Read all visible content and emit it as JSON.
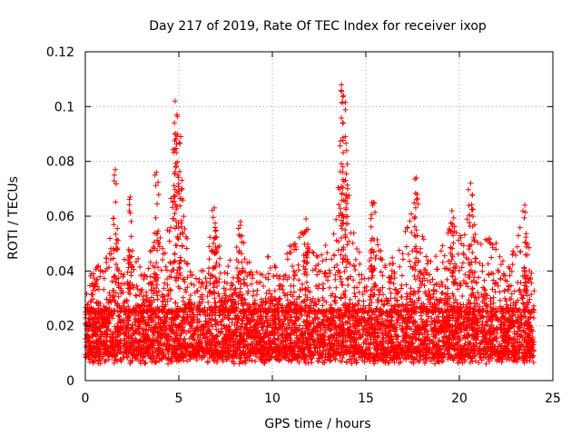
{
  "chart_data": {
    "type": "scatter",
    "title": "Day 217 of 2019, Rate Of TEC Index for receiver ixop",
    "xlabel": "GPS time / hours",
    "ylabel": "ROTI / TECUs",
    "xlim": [
      0,
      25
    ],
    "ylim": [
      0,
      0.12
    ],
    "x_ticks": [
      0,
      5,
      10,
      15,
      20,
      25
    ],
    "y_ticks": [
      0,
      0.02,
      0.04,
      0.06,
      0.08,
      0.1,
      0.12
    ],
    "x_tick_labels": [
      "0",
      "5",
      "10",
      "15",
      "20",
      "25"
    ],
    "y_tick_labels": [
      "0",
      "0.02",
      "0.04",
      "0.06",
      "0.08",
      "0.1",
      "0.12"
    ],
    "grid": true,
    "marker": "+",
    "color": "#ff0000",
    "data_range_hours": [
      0,
      24
    ],
    "typical_band": [
      0.008,
      0.025
    ],
    "peaks": [
      {
        "x": 1.6,
        "y": 0.077
      },
      {
        "x": 2.4,
        "y": 0.067
      },
      {
        "x": 3.8,
        "y": 0.076
      },
      {
        "x": 4.8,
        "y": 0.102
      },
      {
        "x": 4.9,
        "y": 0.097
      },
      {
        "x": 5.1,
        "y": 0.089
      },
      {
        "x": 6.9,
        "y": 0.063
      },
      {
        "x": 8.3,
        "y": 0.058
      },
      {
        "x": 11.8,
        "y": 0.059
      },
      {
        "x": 13.7,
        "y": 0.108
      },
      {
        "x": 13.8,
        "y": 0.104
      },
      {
        "x": 13.9,
        "y": 0.089
      },
      {
        "x": 15.4,
        "y": 0.065
      },
      {
        "x": 17.7,
        "y": 0.074
      },
      {
        "x": 19.6,
        "y": 0.062
      },
      {
        "x": 20.6,
        "y": 0.072
      },
      {
        "x": 23.5,
        "y": 0.064
      }
    ],
    "activity_envelope": [
      [
        0,
        0.03
      ],
      [
        0.5,
        0.045
      ],
      [
        1.0,
        0.04
      ],
      [
        1.6,
        0.065
      ],
      [
        2.0,
        0.042
      ],
      [
        2.4,
        0.055
      ],
      [
        3.0,
        0.04
      ],
      [
        3.5,
        0.048
      ],
      [
        3.8,
        0.07
      ],
      [
        4.2,
        0.045
      ],
      [
        4.8,
        0.09
      ],
      [
        5.1,
        0.08
      ],
      [
        5.6,
        0.042
      ],
      [
        6.2,
        0.04
      ],
      [
        6.9,
        0.06
      ],
      [
        7.5,
        0.04
      ],
      [
        8.3,
        0.055
      ],
      [
        9.0,
        0.038
      ],
      [
        10.0,
        0.048
      ],
      [
        10.5,
        0.04
      ],
      [
        11.0,
        0.052
      ],
      [
        11.8,
        0.056
      ],
      [
        12.5,
        0.045
      ],
      [
        13.2,
        0.055
      ],
      [
        13.8,
        0.085
      ],
      [
        14.3,
        0.06
      ],
      [
        15.0,
        0.035
      ],
      [
        15.4,
        0.06
      ],
      [
        16.0,
        0.045
      ],
      [
        16.8,
        0.048
      ],
      [
        17.7,
        0.068
      ],
      [
        18.3,
        0.045
      ],
      [
        19.0,
        0.05
      ],
      [
        19.6,
        0.058
      ],
      [
        20.2,
        0.052
      ],
      [
        20.6,
        0.065
      ],
      [
        21.2,
        0.05
      ],
      [
        21.8,
        0.055
      ],
      [
        22.5,
        0.04
      ],
      [
        23.0,
        0.052
      ],
      [
        23.5,
        0.062
      ],
      [
        24.0,
        0.035
      ]
    ]
  }
}
